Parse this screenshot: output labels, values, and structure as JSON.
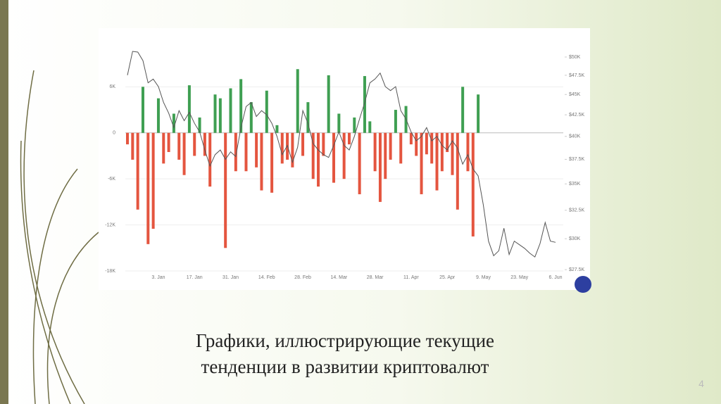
{
  "caption": [
    "Графики, иллюстрирующие текущие",
    "тенденции в развитии криптовалют"
  ],
  "page_number": "4",
  "chart_data": {
    "type": "bar",
    "categories": [
      null,
      null,
      null,
      null,
      null,
      null,
      "3. Jan",
      null,
      null,
      null,
      null,
      null,
      null,
      "17. Jan",
      null,
      null,
      null,
      null,
      null,
      null,
      "31. Jan",
      null,
      null,
      null,
      null,
      null,
      null,
      "14. Feb",
      null,
      null,
      null,
      null,
      null,
      null,
      "28. Feb",
      null,
      null,
      null,
      null,
      null,
      null,
      "14. Mar",
      null,
      null,
      null,
      null,
      null,
      null,
      "28. Mar",
      null,
      null,
      null,
      null,
      null,
      null,
      "11. Apr",
      null,
      null,
      null,
      null,
      null,
      null,
      "25. Apr",
      null,
      null,
      null,
      null,
      null,
      null,
      "9. May",
      null,
      null,
      null,
      null,
      null,
      null,
      "23. May",
      null,
      null,
      null,
      null,
      null,
      null,
      "6. Jun"
    ],
    "ylim": [
      -18000,
      10800
    ],
    "yticks": [
      {
        "value": 6000,
        "label": "6K"
      },
      0,
      {
        "value": -6000,
        "label": "-6K"
      },
      {
        "value": -12000,
        "label": "-12K"
      },
      {
        "value": -18000,
        "label": "-18K"
      }
    ],
    "y2lim": [
      27400,
      51000
    ],
    "y2log": true,
    "y2ticks": [
      {
        "value": 50000,
        "label": "$50K"
      },
      {
        "value": 47500,
        "label": "$47.5K"
      },
      {
        "value": 45000,
        "label": "$45K"
      },
      {
        "value": 42500,
        "label": "$42.5K"
      },
      {
        "value": 40000,
        "label": "$40K"
      },
      {
        "value": 37500,
        "label": "$37.5K"
      },
      {
        "value": 35000,
        "label": "$35K"
      },
      {
        "value": 32500,
        "label": "$32.5K"
      },
      {
        "value": 30000,
        "label": "$30K"
      },
      {
        "value": 27500,
        "label": "$27.5K"
      }
    ],
    "grid": true,
    "series": [
      {
        "type": "bar",
        "color_up": "#3f9f52",
        "color_down": "#e4553f",
        "values": [
          -1500,
          -3500,
          -10000,
          6000,
          -14500,
          -12500,
          4500,
          -4000,
          -2500,
          2500,
          -3500,
          -5500,
          6200,
          -3000,
          2000,
          -3000,
          -7000,
          5000,
          4500,
          -15000,
          5800,
          -5000,
          7000,
          -5000,
          4000,
          -4500,
          -7500,
          5500,
          -7800,
          1000,
          -4000,
          -3500,
          -4500,
          8300,
          -3000,
          4000,
          -6000,
          -7000,
          -3000,
          7500,
          -6500,
          2500,
          -6000,
          -1500,
          2000,
          -8000,
          7400,
          1500,
          -5000,
          -9000,
          -6000,
          -3500,
          3000,
          -4000,
          3500,
          -1500,
          -3000,
          -8000,
          -2800,
          -4000,
          -7500,
          -5000,
          -2500,
          -5500,
          -10000,
          6000,
          -5000,
          -13500,
          5000,
          null,
          null,
          null,
          null,
          null,
          null,
          null,
          null,
          null,
          null,
          null,
          null,
          null,
          null,
          null
        ]
      },
      {
        "type": "line",
        "axis": "y2",
        "color": "#555555",
        "values": [
          47500,
          50800,
          50700,
          49500,
          46500,
          47000,
          46000,
          44000,
          42700,
          41000,
          43000,
          41800,
          42800,
          41500,
          40500,
          38500,
          36800,
          38000,
          38500,
          37500,
          38300,
          37800,
          41000,
          43500,
          44000,
          42300,
          43000,
          42500,
          41500,
          40000,
          38000,
          39000,
          37200,
          38800,
          43000,
          41500,
          39200,
          38500,
          38000,
          37700,
          39000,
          40500,
          39000,
          38500,
          40000,
          42000,
          44000,
          46500,
          47000,
          47800,
          46000,
          45500,
          46000,
          43000,
          42000,
          40500,
          39500,
          40000,
          41000,
          39500,
          40000,
          39000,
          38500,
          39500,
          38700,
          37000,
          38000,
          36500,
          35800,
          33000,
          29800,
          28600,
          29000,
          30900,
          28700,
          29800,
          29500,
          29200,
          28800,
          28500,
          29600,
          31400,
          29800,
          29700
        ]
      }
    ]
  }
}
